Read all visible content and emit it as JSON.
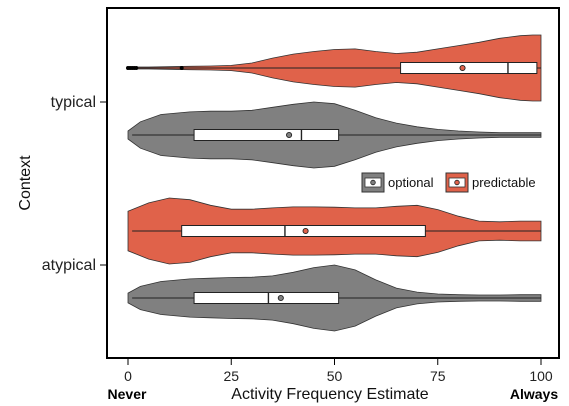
{
  "chart_data": {
    "type": "violin",
    "xlabel": "Activity Frequency Estimate",
    "ylabel": "Context",
    "xlim": [
      0,
      100
    ],
    "x_ticks": [
      "0",
      "25",
      "50",
      "75",
      "100"
    ],
    "x_tick_values": [
      0,
      25,
      50,
      75,
      100
    ],
    "x_end_labels": {
      "left": "Never",
      "right": "Always"
    },
    "categories": [
      "typical",
      "atypical"
    ],
    "legend": {
      "placement": "center-right",
      "entries": [
        "optional",
        "predictable"
      ]
    },
    "colors": {
      "optional": "#808080",
      "predictable": "#e0624a"
    },
    "series": [
      {
        "name": "predictable",
        "category": "typical",
        "box": {
          "q1": 66,
          "median": 92,
          "q3": 99,
          "whisker_low": 1,
          "whisker_high": 100,
          "mean": 81
        },
        "outliers": [
          0,
          0.5,
          1,
          1.5,
          2,
          13
        ],
        "density_x": [
          0,
          2,
          5,
          10,
          15,
          20,
          25,
          30,
          35,
          40,
          45,
          50,
          55,
          60,
          65,
          70,
          75,
          80,
          85,
          90,
          95,
          98,
          100
        ],
        "density_y": [
          0.02,
          0.03,
          0.03,
          0.04,
          0.05,
          0.06,
          0.08,
          0.15,
          0.3,
          0.42,
          0.5,
          0.56,
          0.58,
          0.5,
          0.44,
          0.48,
          0.58,
          0.68,
          0.78,
          0.9,
          0.98,
          1.0,
          1.0
        ]
      },
      {
        "name": "optional",
        "category": "typical",
        "box": {
          "q1": 16,
          "median": 42,
          "q3": 51,
          "whisker_low": 1,
          "whisker_high": 100,
          "mean": 39
        },
        "outliers": [],
        "density_x": [
          0,
          3,
          8,
          15,
          20,
          25,
          30,
          35,
          40,
          45,
          50,
          55,
          60,
          65,
          70,
          75,
          80,
          85,
          90,
          95,
          100
        ],
        "density_y": [
          0.12,
          0.4,
          0.62,
          0.7,
          0.72,
          0.72,
          0.75,
          0.84,
          0.93,
          1.0,
          0.95,
          0.75,
          0.52,
          0.36,
          0.25,
          0.17,
          0.12,
          0.09,
          0.07,
          0.07,
          0.07
        ]
      },
      {
        "name": "predictable",
        "category": "atypical",
        "box": {
          "q1": 13,
          "median": 38,
          "q3": 72,
          "whisker_low": 1,
          "whisker_high": 100,
          "mean": 43
        },
        "outliers": [],
        "density_x": [
          0,
          5,
          10,
          15,
          20,
          25,
          30,
          35,
          40,
          45,
          50,
          55,
          60,
          65,
          70,
          75,
          80,
          85,
          90,
          95,
          100
        ],
        "density_y": [
          0.6,
          0.85,
          1.0,
          0.95,
          0.78,
          0.66,
          0.66,
          0.7,
          0.73,
          0.73,
          0.72,
          0.7,
          0.7,
          0.75,
          0.78,
          0.65,
          0.45,
          0.3,
          0.28,
          0.3,
          0.3
        ]
      },
      {
        "name": "optional",
        "category": "atypical",
        "box": {
          "q1": 16,
          "median": 34,
          "q3": 51,
          "whisker_low": 1,
          "whisker_high": 100,
          "mean": 37
        },
        "outliers": [],
        "density_x": [
          0,
          3,
          8,
          15,
          20,
          25,
          30,
          35,
          40,
          45,
          50,
          55,
          60,
          65,
          70,
          75,
          80,
          85,
          90,
          95,
          100
        ],
        "density_y": [
          0.15,
          0.35,
          0.5,
          0.58,
          0.6,
          0.62,
          0.63,
          0.67,
          0.78,
          0.92,
          1.0,
          0.85,
          0.55,
          0.3,
          0.18,
          0.12,
          0.1,
          0.09,
          0.09,
          0.1,
          0.1
        ]
      }
    ]
  }
}
